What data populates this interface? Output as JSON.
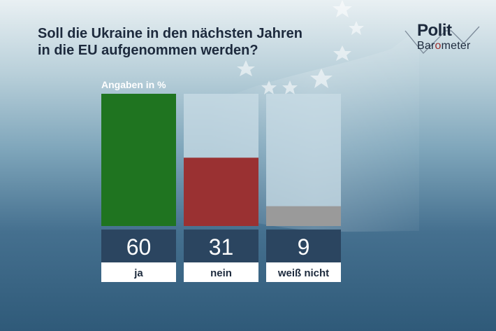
{
  "title_line1": "Soll die Ukraine in den nächsten Jahren",
  "title_line2": "in die EU aufgenommen werden?",
  "logo": {
    "word1": "Polit",
    "word2_a": "Bar",
    "word2_b": "o",
    "word2_c": "meter"
  },
  "chart_data": {
    "type": "bar",
    "unit_label": "Angaben in %",
    "categories": [
      "ja",
      "nein",
      "weiß nicht"
    ],
    "values": [
      60,
      31,
      9
    ],
    "value_labels": [
      "60",
      "31",
      "9"
    ],
    "colors": [
      "#1f7420",
      "#9a3132",
      "#9a9a9a"
    ],
    "ylim": [
      0,
      60
    ],
    "track_color": "#c9dce6",
    "value_box_color": "#2b4560",
    "label_box_color": "#ffffff"
  }
}
